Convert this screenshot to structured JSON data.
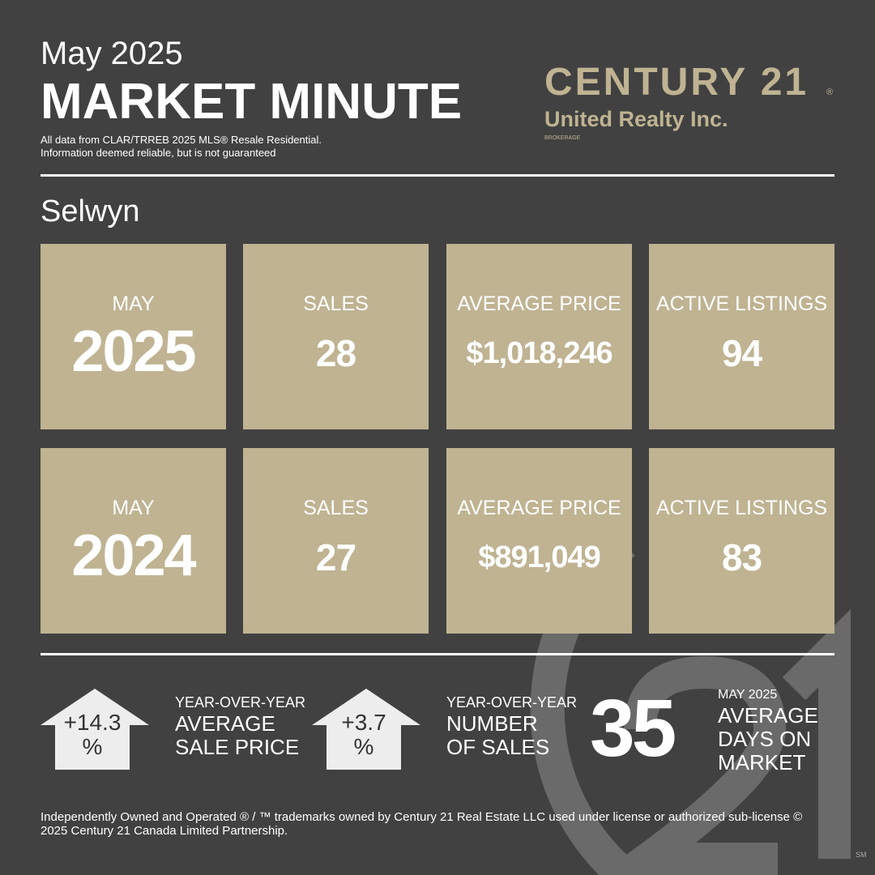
{
  "header": {
    "month": "May 2025",
    "title": "MARKET MINUTE",
    "disclaimer": [
      "All data from CLAR/TRREB 2025 MLS® Resale  Residential.",
      "Information deemed reliable, but is not guaranteed"
    ]
  },
  "logo": {
    "brand": "CENTURY 21",
    "registered": "®",
    "office": "United Realty Inc.",
    "tag": "BROKERAGE",
    "service_mark": "SM"
  },
  "area": "Selwyn",
  "rows": [
    {
      "month": "MAY",
      "year": "2025",
      "stats": [
        {
          "label": "SALES",
          "value": "28"
        },
        {
          "label": "AVERAGE PRICE",
          "value": "$1,018,246"
        },
        {
          "label": "ACTIVE LISTINGS",
          "value": "94"
        }
      ]
    },
    {
      "month": "MAY",
      "year": "2024",
      "stats": [
        {
          "label": "SALES",
          "value": "27"
        },
        {
          "label": "AVERAGE PRICE",
          "value": "$891,049"
        },
        {
          "label": "ACTIVE LISTINGS",
          "value": "83"
        }
      ]
    }
  ],
  "summary": [
    {
      "value": "+14.3",
      "unit": "%",
      "kicker": "YEAR-OVER-YEAR",
      "lines": [
        "AVERAGE",
        "SALE PRICE"
      ]
    },
    {
      "value": "+3.7",
      "unit": "%",
      "kicker": "YEAR-OVER-YEAR",
      "lines": [
        "NUMBER",
        "OF SALES"
      ]
    },
    {
      "value": "35",
      "kicker": "MAY 2025",
      "lines": [
        "AVERAGE",
        "DAYS ON",
        "MARKET"
      ]
    }
  ],
  "footnote": "Independently Owned and Operated ® / ™ trademarks owned by Century 21 Real Estate LLC used under license or authorized sub-license © 2025 Century 21 Canada Limited Partnership."
}
